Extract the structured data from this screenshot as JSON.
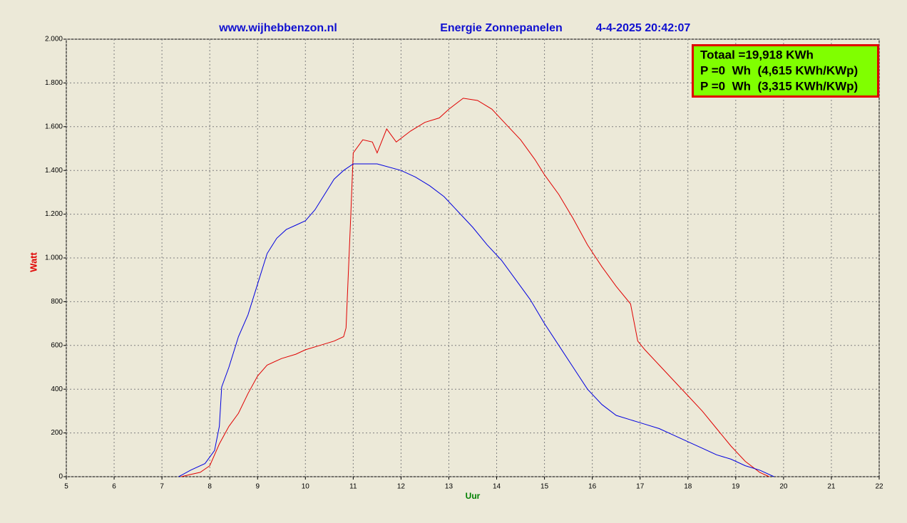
{
  "chart_data": {
    "type": "line",
    "title": "www.wijhebbenzon.nl",
    "subtitle": "Energie Zonnepanelen",
    "timestamp": "4-4-2025 20:42:07",
    "annotations": [
      "Totaal =19,918 KWh",
      "P =0  Wh  (4,615 KWh/KWp)",
      "P =0  Wh  (3,315 KWh/KWp)"
    ],
    "x_label": "Uur",
    "y_label": "Watt",
    "xlim": [
      5,
      22
    ],
    "xticks": [
      5,
      6,
      7,
      8,
      9,
      10,
      11,
      12,
      13,
      14,
      15,
      16,
      17,
      18,
      19,
      20,
      21,
      22
    ],
    "ylim": [
      0,
      2000
    ],
    "yticks": [
      0,
      200,
      400,
      600,
      800,
      {
        "value": 1000,
        "label": "1.000"
      },
      {
        "value": 1200,
        "label": "1.200"
      },
      {
        "value": 1400,
        "label": "1.400"
      },
      {
        "value": 1600,
        "label": "1.600"
      },
      {
        "value": 1800,
        "label": "1.800"
      },
      {
        "value": 2000,
        "label": "2.000"
      }
    ],
    "grid": true,
    "series": [
      {
        "color": "#e00000",
        "x": [
          7.4,
          7.6,
          7.8,
          8.0,
          8.2,
          8.4,
          8.6,
          8.8,
          9.0,
          9.2,
          9.5,
          9.8,
          10.0,
          10.3,
          10.6,
          10.8,
          10.85,
          10.95,
          11.0,
          11.2,
          11.4,
          11.5,
          11.7,
          11.9,
          12.2,
          12.5,
          12.8,
          13.0,
          13.3,
          13.6,
          13.9,
          14.2,
          14.5,
          14.8,
          15.0,
          15.3,
          15.6,
          15.9,
          16.2,
          16.5,
          16.8,
          16.95,
          17.1,
          17.4,
          17.7,
          18.0,
          18.3,
          18.6,
          18.9,
          19.2,
          19.5,
          19.7
        ],
        "values": [
          0,
          10,
          20,
          50,
          150,
          230,
          290,
          380,
          460,
          510,
          540,
          560,
          580,
          600,
          620,
          640,
          680,
          1200,
          1480,
          1540,
          1530,
          1480,
          1590,
          1530,
          1580,
          1620,
          1640,
          1680,
          1730,
          1720,
          1680,
          1610,
          1540,
          1450,
          1380,
          1290,
          1180,
          1060,
          960,
          870,
          790,
          620,
          580,
          510,
          440,
          370,
          300,
          220,
          140,
          70,
          20,
          0
        ]
      },
      {
        "color": "#0000e0",
        "x": [
          7.35,
          7.6,
          7.9,
          8.1,
          8.2,
          8.25,
          8.4,
          8.6,
          8.8,
          9.0,
          9.2,
          9.4,
          9.6,
          9.8,
          10.0,
          10.2,
          10.4,
          10.6,
          10.8,
          11.0,
          11.5,
          12.0,
          12.3,
          12.6,
          12.9,
          13.2,
          13.5,
          13.8,
          14.1,
          14.4,
          14.7,
          15.0,
          15.3,
          15.6,
          15.9,
          16.2,
          16.5,
          16.8,
          17.1,
          17.4,
          17.7,
          18.0,
          18.3,
          18.6,
          18.9,
          19.2,
          19.5,
          19.8
        ],
        "values": [
          0,
          30,
          60,
          120,
          230,
          410,
          500,
          640,
          740,
          880,
          1020,
          1090,
          1130,
          1150,
          1170,
          1220,
          1290,
          1360,
          1400,
          1430,
          1430,
          1400,
          1370,
          1330,
          1280,
          1210,
          1140,
          1060,
          990,
          900,
          810,
          700,
          600,
          500,
          400,
          330,
          280,
          260,
          240,
          220,
          190,
          160,
          130,
          100,
          80,
          50,
          30,
          0
        ]
      }
    ]
  }
}
